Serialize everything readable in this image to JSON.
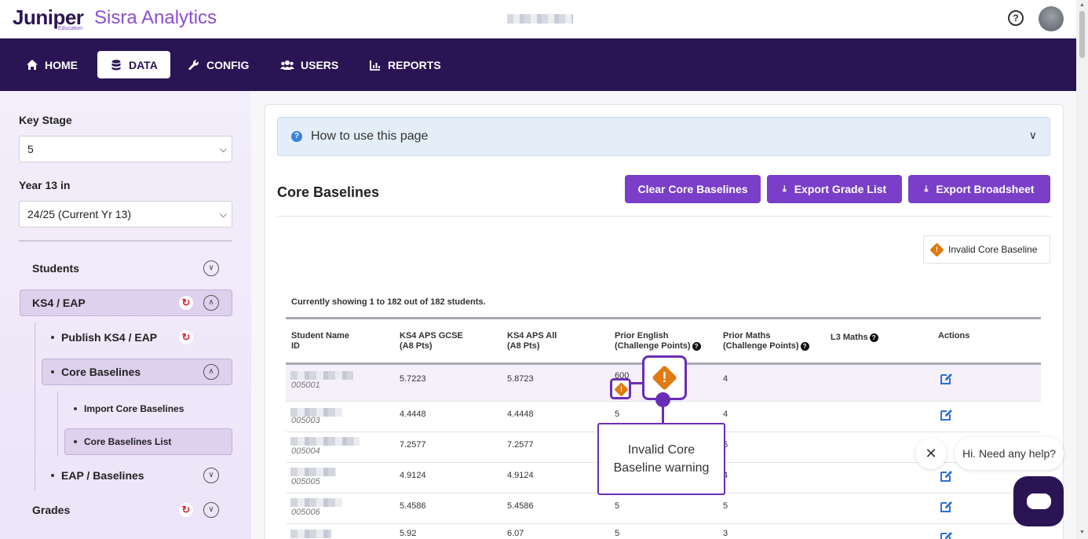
{
  "header": {
    "brand_primary": "Juniper",
    "brand_sub": "Education",
    "brand_product": "Sisra Analytics",
    "help_icon": "question-circle-icon"
  },
  "nav": {
    "items": [
      {
        "label": "HOME",
        "icon": "home-icon"
      },
      {
        "label": "DATA",
        "icon": "database-icon",
        "active": true
      },
      {
        "label": "CONFIG",
        "icon": "wrench-icon"
      },
      {
        "label": "USERS",
        "icon": "users-icon"
      },
      {
        "label": "REPORTS",
        "icon": "bar-chart-icon"
      }
    ]
  },
  "sidebar": {
    "key_stage_label": "Key Stage",
    "key_stage_value": "5",
    "year_label": "Year 13 in",
    "year_value": "24/25 (Current Yr 13)",
    "tree": {
      "students": "Students",
      "ks4_eap": "KS4 / EAP",
      "publish": "Publish KS4 / EAP",
      "core_baselines": "Core Baselines",
      "import_core": "Import Core Baselines",
      "core_list": "Core Baselines List",
      "eap_baselines": "EAP / Baselines",
      "grades": "Grades"
    }
  },
  "main": {
    "howto": "How to use this page",
    "title": "Core Baselines",
    "buttons": {
      "clear": "Clear Core Baselines",
      "export_grade": "Export Grade List",
      "export_broad": "Export Broadsheet"
    },
    "legend": "Invalid Core Baseline",
    "showing": "Currently showing 1 to 182 out of 182 students.",
    "columns": {
      "name_1": "Student Name",
      "name_2": "ID",
      "ks4_gcse_1": "KS4 APS GCSE",
      "ks4_gcse_2": "(A8 Pts)",
      "ks4_all_1": "KS4 APS All",
      "ks4_all_2": "(A8 Pts)",
      "prior_eng_1": "Prior English",
      "prior_eng_2": "(Challenge Points)",
      "prior_maths_1": "Prior Maths",
      "prior_maths_2": "(Challenge Points)",
      "l3_maths": "L3 Maths",
      "actions": "Actions"
    },
    "rows": [
      {
        "id": "005001",
        "gcse": "5.7223",
        "all": "5.8723",
        "eng": "600",
        "maths": "4"
      },
      {
        "id": "005003",
        "gcse": "4.4448",
        "all": "4.4448",
        "eng": "5",
        "maths": "4"
      },
      {
        "id": "005004",
        "gcse": "7.2577",
        "all": "7.2577",
        "eng": "",
        "maths": "6"
      },
      {
        "id": "005005",
        "gcse": "4.9124",
        "all": "4.9124",
        "eng": "",
        "maths": "4"
      },
      {
        "id": "005006",
        "gcse": "5.4586",
        "all": "5.4586",
        "eng": "5",
        "maths": "5"
      },
      {
        "id": "",
        "gcse": "5.92",
        "all": "6.07",
        "eng": "5",
        "maths": "3"
      }
    ]
  },
  "callout": {
    "text": "Invalid Core Baseline warning"
  },
  "chat": {
    "greeting": "Hi. Need any help?"
  },
  "colors": {
    "nav_bg": "#2a1454",
    "accent": "#7a3ec8",
    "warning": "#e07a12",
    "callout": "#6a2db5"
  }
}
